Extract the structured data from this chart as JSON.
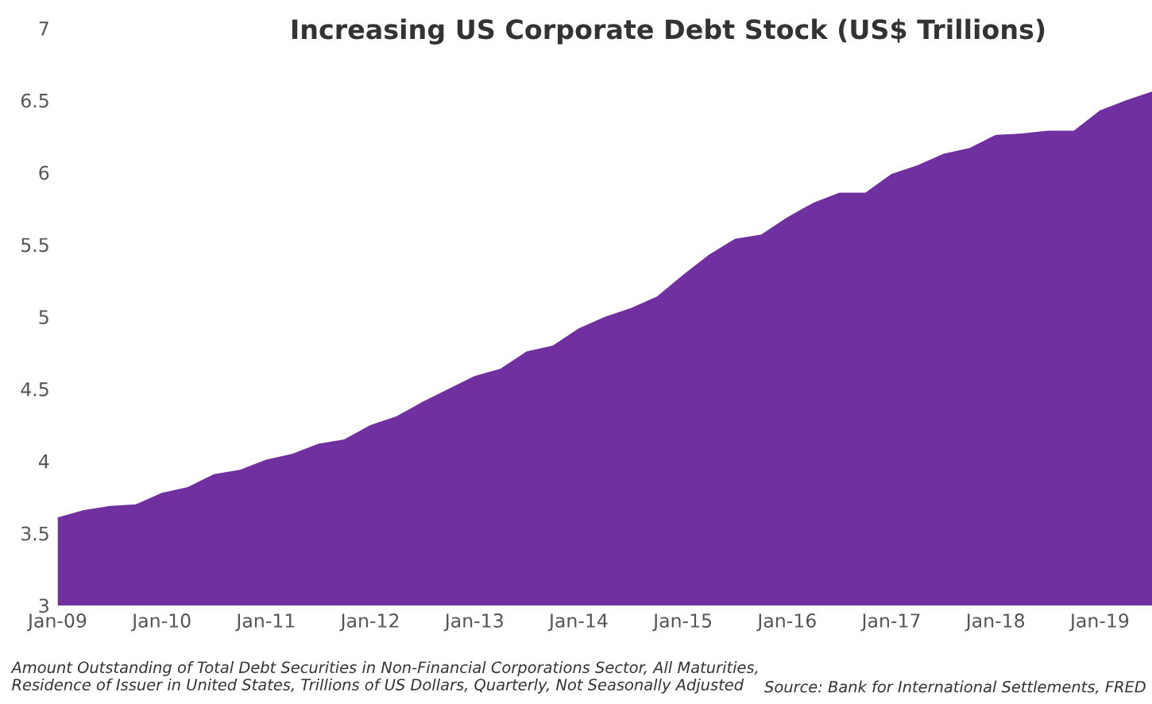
{
  "chart_data": {
    "type": "area",
    "title": "Increasing US Corporate Debt Stock (US$ Trillions)",
    "categories": [
      "Jan-09",
      null,
      null,
      null,
      "Jan-10",
      null,
      null,
      null,
      "Jan-11",
      null,
      null,
      null,
      "Jan-12",
      null,
      null,
      null,
      "Jan-13",
      null,
      null,
      null,
      "Jan-14",
      null,
      null,
      null,
      "Jan-15",
      null,
      null,
      null,
      "Jan-16",
      null,
      null,
      null,
      "Jan-17",
      null,
      null,
      null,
      "Jan-18",
      null,
      null,
      null,
      "Jan-19",
      null,
      null
    ],
    "series": [
      {
        "color": "#7030a0",
        "values": [
          3.61,
          3.66,
          3.69,
          3.7,
          3.78,
          3.82,
          3.91,
          3.94,
          4.01,
          4.05,
          4.12,
          4.15,
          4.25,
          4.31,
          4.41,
          4.5,
          4.59,
          4.64,
          4.76,
          4.8,
          4.92,
          5.0,
          5.06,
          5.14,
          5.29,
          5.43,
          5.54,
          5.57,
          5.69,
          5.79,
          5.86,
          5.86,
          5.99,
          6.05,
          6.13,
          6.17,
          6.26,
          6.27,
          6.29,
          6.29,
          6.43,
          6.5,
          6.56
        ]
      }
    ],
    "ylim": [
      3,
      7
    ],
    "yticks": [
      3,
      3.5,
      4,
      4.5,
      5,
      5.5,
      6,
      6.5,
      7
    ],
    "grid": false,
    "legend": false,
    "annotations": [
      "Amount Outstanding of Total Debt Securities in Non-Financial Corporations Sector, All Maturities,\nResidence of Issuer in United States, Trillions of US Dollars, Quarterly, Not Seasonally Adjusted",
      "Source: Bank for International Settlements, FRED"
    ]
  }
}
